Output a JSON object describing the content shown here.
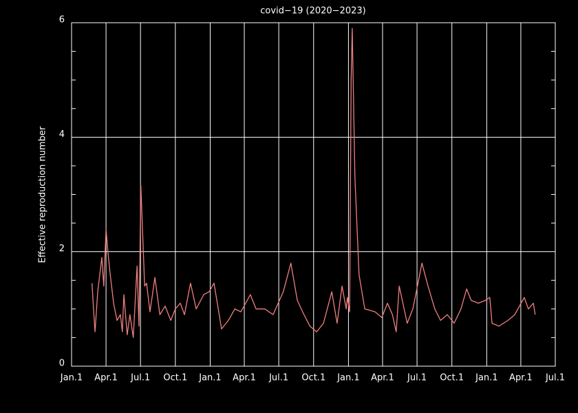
{
  "chart_data": {
    "type": "line",
    "title": "covid−19 (2020−2023)",
    "y_label": "Effective reproduction number",
    "x": [
      54,
      58,
      62,
      69,
      80,
      85,
      91,
      96,
      102,
      111,
      120,
      129,
      134,
      138,
      147,
      154,
      163,
      173,
      178,
      183,
      193,
      198,
      207,
      220,
      233,
      247,
      262,
      274,
      287,
      298,
      314,
      329,
      349,
      363,
      376,
      396,
      414,
      431,
      447,
      472,
      487,
      510,
      532,
      559,
      579,
      596,
      610,
      629,
      647,
      665,
      687,
      701,
      714,
      725,
      728,
      734,
      738,
      741,
      748,
      759,
      774,
      801,
      819,
      834,
      847,
      857,
      865,
      886,
      901,
      916,
      925,
      941,
      959,
      974,
      992,
      1010,
      1028,
      1043,
      1055,
      1074,
      1092,
      1104,
      1110,
      1128,
      1152,
      1170,
      1195,
      1206,
      1219,
      1224
    ],
    "series": [
      {
        "color": "#f08080",
        "values": [
          1.45,
          1.0,
          0.6,
          1.3,
          1.9,
          1.4,
          2.4,
          2.0,
          1.6,
          1.1,
          0.8,
          0.9,
          0.6,
          1.25,
          0.55,
          0.9,
          0.5,
          1.75,
          0.7,
          3.15,
          1.4,
          1.45,
          0.95,
          1.55,
          0.9,
          1.05,
          0.8,
          1.0,
          1.1,
          0.9,
          1.45,
          1.0,
          1.25,
          1.3,
          1.45,
          0.65,
          0.8,
          1.0,
          0.95,
          1.25,
          1.0,
          1.0,
          0.9,
          1.3,
          1.8,
          1.15,
          0.95,
          0.7,
          0.6,
          0.75,
          1.3,
          0.75,
          1.4,
          1.0,
          1.2,
          0.95,
          5.0,
          5.9,
          3.3,
          1.6,
          1.0,
          0.95,
          0.85,
          1.1,
          0.9,
          0.6,
          1.4,
          0.75,
          1.0,
          1.5,
          1.8,
          1.4,
          1.0,
          0.8,
          0.9,
          0.75,
          1.0,
          1.35,
          1.15,
          1.1,
          1.15,
          1.2,
          0.75,
          0.7,
          0.8,
          0.9,
          1.2,
          1.0,
          1.1,
          0.9
        ]
      }
    ],
    "xlim": [
      0,
      1277
    ],
    "xticks": [
      {
        "value": 0,
        "label": "Jan.1"
      },
      {
        "value": 91,
        "label": "Apr.1"
      },
      {
        "value": 182,
        "label": "Jul.1"
      },
      {
        "value": 274,
        "label": "Oct.1"
      },
      {
        "value": 366,
        "label": "Jan.1"
      },
      {
        "value": 456,
        "label": "Apr.1"
      },
      {
        "value": 547,
        "label": "Jul.1"
      },
      {
        "value": 639,
        "label": "Oct.1"
      },
      {
        "value": 731,
        "label": "Jan.1"
      },
      {
        "value": 821,
        "label": "Apr.1"
      },
      {
        "value": 912,
        "label": "Jul.1"
      },
      {
        "value": 1004,
        "label": "Oct.1"
      },
      {
        "value": 1096,
        "label": "Jan.1"
      },
      {
        "value": 1186,
        "label": "Apr.1"
      },
      {
        "value": 1277,
        "label": "Jul.1"
      }
    ],
    "ylim": [
      0,
      6
    ],
    "yticks": [
      0,
      2,
      4,
      6
    ],
    "yminorticks": [
      0.5,
      1,
      1.5,
      2.5,
      3,
      3.5,
      4.5,
      5,
      5.5
    ],
    "grid": true
  }
}
